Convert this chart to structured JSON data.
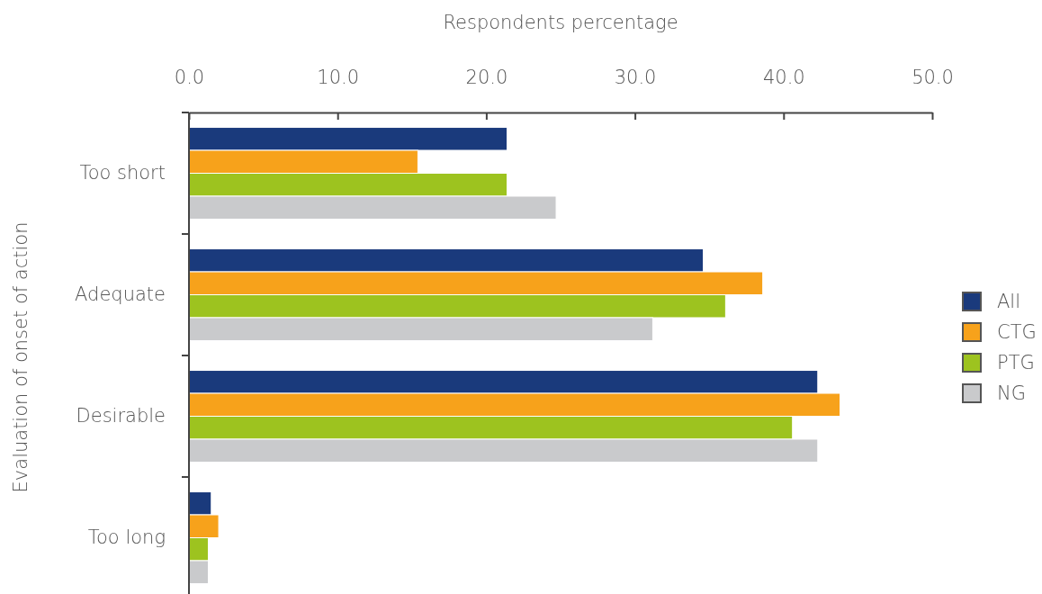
{
  "chart_data": {
    "type": "bar",
    "orientation": "horizontal",
    "xlabel": "Respondents percentage",
    "ylabel": "Evaluation of onset of action",
    "categories": [
      "Too short",
      "Adequate",
      "Desirable",
      "Too long"
    ],
    "series": [
      {
        "name": "All",
        "color": "#1a3a7c",
        "values": [
          21.4,
          34.6,
          42.3,
          1.5
        ]
      },
      {
        "name": "CTG",
        "color": "#f7a21b",
        "values": [
          15.4,
          38.6,
          43.8,
          2.0
        ]
      },
      {
        "name": "PTG",
        "color": "#9dc31f",
        "values": [
          21.4,
          36.1,
          40.6,
          1.3
        ]
      },
      {
        "name": "NG",
        "color": "#c9cacc",
        "values": [
          24.7,
          31.2,
          42.3,
          1.3
        ]
      }
    ],
    "xlim": [
      0,
      50
    ],
    "xticks": [
      {
        "value": 0,
        "label": "0.0"
      },
      {
        "value": 10,
        "label": "10.0"
      },
      {
        "value": 20,
        "label": "20.0"
      },
      {
        "value": 30,
        "label": "30.0"
      },
      {
        "value": 40,
        "label": "40.0"
      },
      {
        "value": 50,
        "label": "50.0"
      }
    ],
    "grid": false,
    "legend": "right"
  }
}
